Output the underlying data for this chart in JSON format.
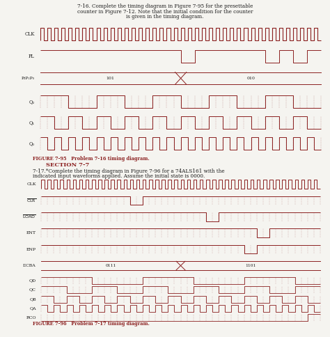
{
  "bg_color": "#f5f4f0",
  "text_color": "#1a1a1a",
  "signal_color": "#8b2020",
  "dash_color": "#b07070",
  "title1": "7-16. Complete the timing diagram in Figure 7-95 for the presettable",
  "title2": "counter in Figure 7-12. Note that the initial condition for the counter",
  "title3": "is given in the timing diagram.",
  "section": "SECTION 7-7",
  "prob2a": "7-17.*Complete the timing diagram in Figure 7-96 for a 74ALS161 with the",
  "prob2b": "indicated input waveforms applied. Assume the initial state is 0000.",
  "cap1": "FIGURE 7-95   Problem 7-16 timing diagram.",
  "cap2": "FIGURE 7-96   Problem 7-17 timing diagram."
}
